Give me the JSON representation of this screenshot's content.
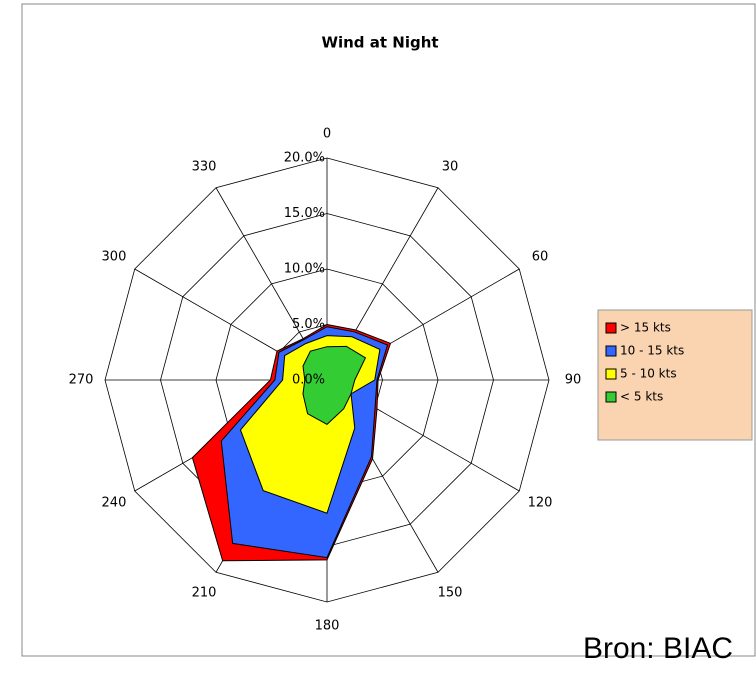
{
  "chart_data": {
    "type": "radar",
    "title": "Wind at Night",
    "categories": [
      "0",
      "30",
      "60",
      "90",
      "120",
      "150",
      "180",
      "210",
      "240",
      "270",
      "300",
      "330"
    ],
    "series": [
      {
        "name": "> 15 kts",
        "color": "#ff0000",
        "values": [
          5,
          5.2,
          6.6,
          4.6,
          5.2,
          8.2,
          16.2,
          18.8,
          14,
          5.1,
          5.2,
          4.3
        ]
      },
      {
        "name": "10 - 15 kts",
        "color": "#3366ff",
        "values": [
          4.8,
          5,
          6.3,
          4.5,
          5,
          8,
          16,
          17,
          11,
          4.7,
          5,
          4.2
        ]
      },
      {
        "name": "5 - 10 kts",
        "color": "#ffff00",
        "values": [
          4,
          4.5,
          5.5,
          4.3,
          2.5,
          5,
          12,
          11.5,
          9,
          4,
          4.4,
          3.8
        ]
      },
      {
        "name": "< 5 kts",
        "color": "#33cc33",
        "values": [
          3,
          3.5,
          4,
          2.5,
          2.5,
          3,
          4,
          3.5,
          2.5,
          2,
          2.5,
          3
        ]
      }
    ],
    "ylim": [
      0,
      20
    ],
    "yticks": [
      {
        "value": 0,
        "label": "0.0%"
      },
      {
        "value": 5,
        "label": "5.0%"
      },
      {
        "value": 10,
        "label": "10.0%"
      },
      {
        "value": 15,
        "label": "15.0%"
      },
      {
        "value": 20,
        "label": "20.0%"
      }
    ],
    "grid": true,
    "legend": "right",
    "annotation": "Bron: BIAC"
  }
}
